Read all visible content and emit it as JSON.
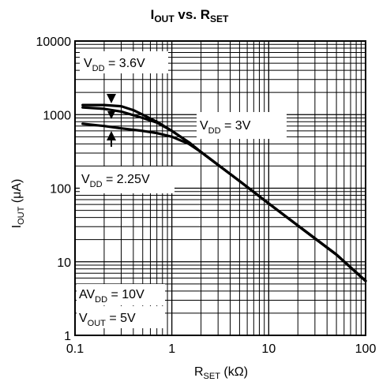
{
  "chart_data": {
    "type": "line",
    "title": {
      "main": "I",
      "sub1": "OUT",
      "mid": " vs. R",
      "sub2": "SET"
    },
    "xlabel": {
      "main": "R",
      "sub": "SET",
      "unit": " (kΩ)"
    },
    "ylabel": {
      "main": "I",
      "sub": "OUT",
      "unit": " (μA)"
    },
    "x_scale": "log",
    "y_scale": "log",
    "xlim": [
      0.1,
      100
    ],
    "ylim": [
      1,
      10000
    ],
    "grid": true,
    "x_ticks": [
      {
        "value": 0.1,
        "label": "0.1"
      },
      {
        "value": 1,
        "label": "1"
      },
      {
        "value": 10,
        "label": "10"
      },
      {
        "value": 100,
        "label": "100"
      }
    ],
    "y_ticks": [
      {
        "value": 1,
        "label": "1"
      },
      {
        "value": 10,
        "label": "10"
      },
      {
        "value": 100,
        "label": "100"
      },
      {
        "value": 1000,
        "label": "1000"
      },
      {
        "value": 10000,
        "label": "10000"
      }
    ],
    "series": [
      {
        "x": [
          0.12,
          0.2,
          0.3,
          0.4,
          0.5,
          0.7,
          1,
          1.5,
          2,
          5,
          10,
          20,
          50,
          100
        ],
        "y": [
          1350,
          1350,
          1300,
          1150,
          1000,
          800,
          600,
          420,
          310,
          125,
          62,
          31,
          12.5,
          5.5
        ]
      },
      {
        "x": [
          0.12,
          0.2,
          0.3,
          0.5,
          0.7,
          1,
          1.5,
          2,
          5,
          10,
          20,
          50,
          100
        ],
        "y": [
          1250,
          1200,
          1100,
          900,
          780,
          600,
          420,
          310,
          125,
          62,
          31,
          12.5,
          5.5
        ]
      },
      {
        "x": [
          0.12,
          0.2,
          0.3,
          0.5,
          0.7,
          1,
          1.5,
          2,
          5,
          10,
          20,
          50,
          100
        ],
        "y": [
          750,
          700,
          650,
          600,
          560,
          500,
          400,
          310,
          125,
          62,
          31,
          12.5,
          5.5
        ]
      }
    ],
    "annotations": [
      {
        "id": "vdd36",
        "parts": [
          {
            "t": "V"
          },
          {
            "t": "DD",
            "sub": true
          },
          {
            "t": " = 3.6V"
          }
        ]
      },
      {
        "id": "vdd3",
        "parts": [
          {
            "t": "V"
          },
          {
            "t": "DD",
            "sub": true
          },
          {
            "t": " = 3V"
          }
        ]
      },
      {
        "id": "vdd225",
        "parts": [
          {
            "t": "V"
          },
          {
            "t": "DD",
            "sub": true
          },
          {
            "t": " = 2.25V"
          }
        ]
      },
      {
        "id": "avdd",
        "parts": [
          {
            "t": "AV"
          },
          {
            "t": "DD",
            "sub": true
          },
          {
            "t": " = 10V"
          }
        ]
      },
      {
        "id": "vout",
        "parts": [
          {
            "t": "V"
          },
          {
            "t": "OUT",
            "sub": true
          },
          {
            "t": " = 5V"
          }
        ]
      }
    ]
  }
}
